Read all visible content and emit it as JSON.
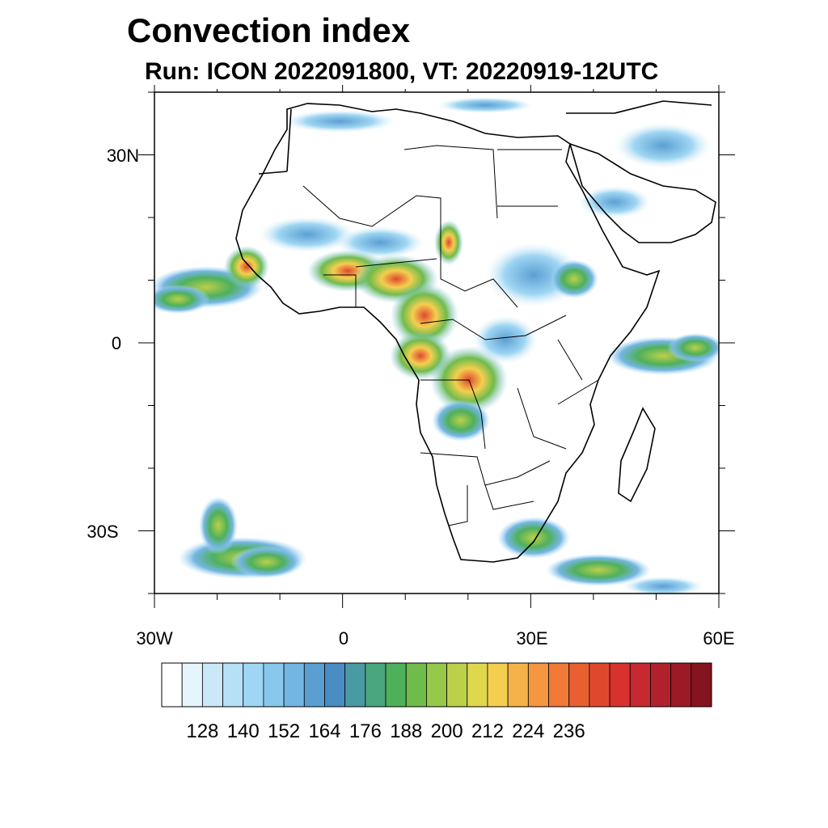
{
  "title": "Convection index",
  "subtitle": "Run: ICON 2022091800,  VT: 20220919-12UTC",
  "map": {
    "lon_range": [
      -30,
      60
    ],
    "lat_range": [
      -40,
      40
    ],
    "lat_ticks": [
      {
        "value": 30,
        "label": "30N"
      },
      {
        "value": 0,
        "label": "0"
      },
      {
        "value": -30,
        "label": "30S"
      }
    ],
    "lon_ticks": [
      {
        "value": -30,
        "label": "30W"
      },
      {
        "value": 0,
        "label": "0"
      },
      {
        "value": 30,
        "label": "30E"
      },
      {
        "value": 60,
        "label": "60E"
      }
    ]
  },
  "colorbar": {
    "colors": [
      "#ffffff",
      "#e6f4fb",
      "#cbe8f8",
      "#b5e0f6",
      "#9fd6f3",
      "#88c8ec",
      "#74b6e3",
      "#5b9fd2",
      "#4a8cc4",
      "#4a9aa4",
      "#4aa67c",
      "#4fb05c",
      "#6fbb4c",
      "#96c84a",
      "#bcd04a",
      "#dfd84c",
      "#f4cf4e",
      "#f6b24a",
      "#f59640",
      "#f07a36",
      "#e86030",
      "#e0482e",
      "#d9322e",
      "#c82830",
      "#b2202c",
      "#9c1a26",
      "#861420"
    ],
    "tick_labels": [
      "128",
      "140",
      "152",
      "164",
      "176",
      "188",
      "200",
      "212",
      "224",
      "236"
    ]
  }
}
